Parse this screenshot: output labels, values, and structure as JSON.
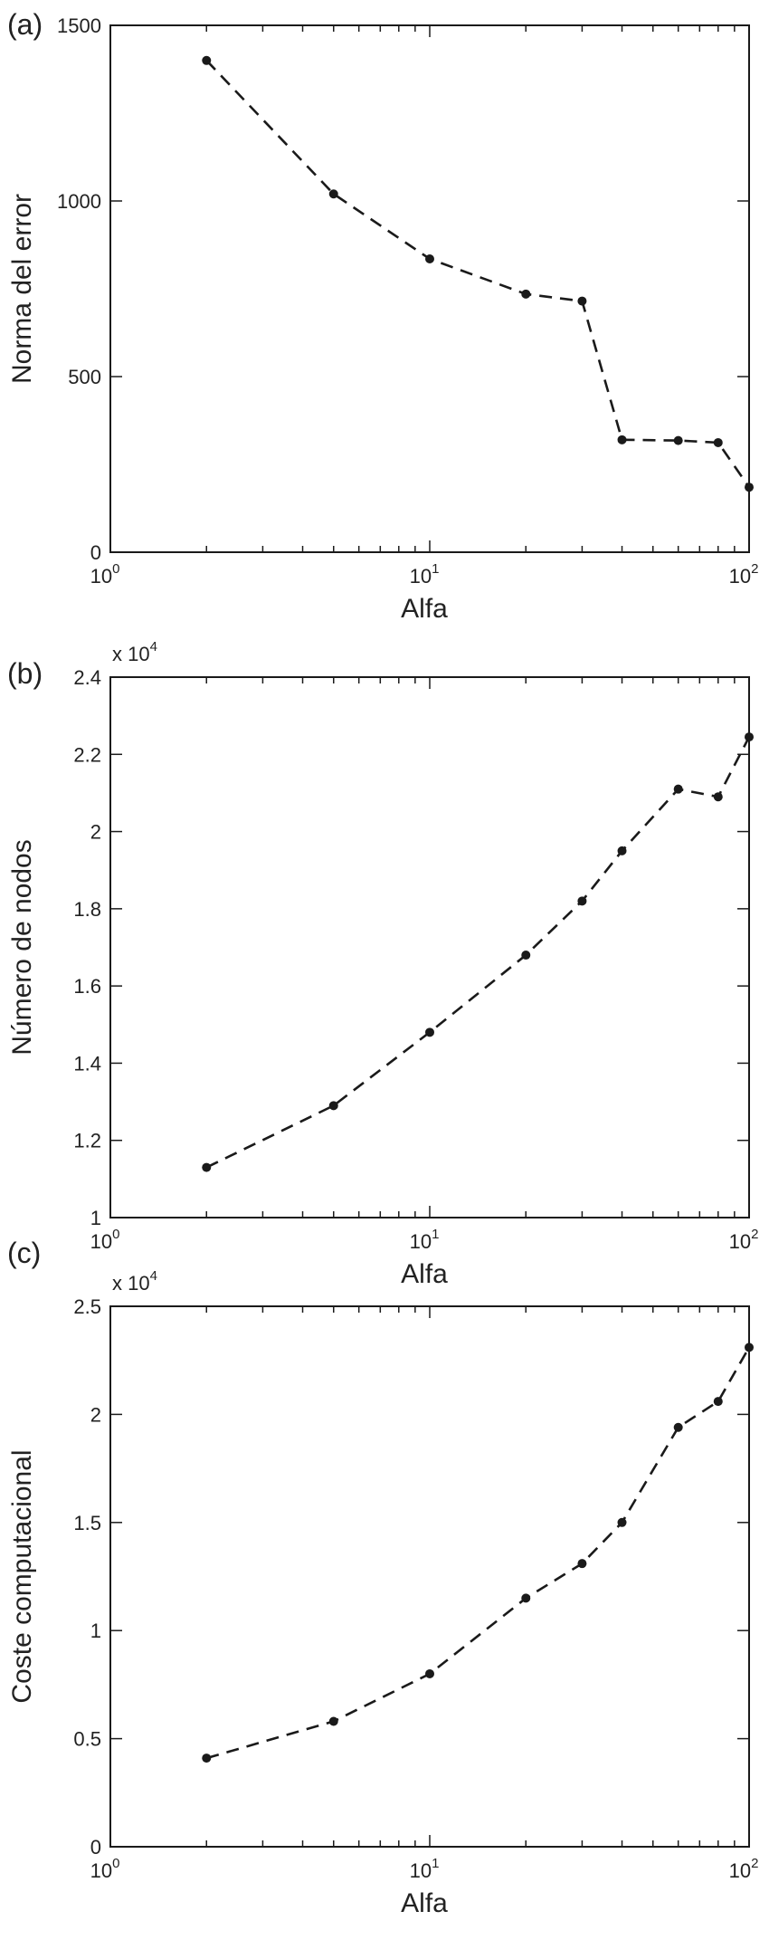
{
  "chart_data": [
    {
      "type": "line",
      "panel_label": "(a)",
      "xscale": "log",
      "xlabel": "Alfa",
      "ylabel": "Norma del error",
      "xlim": [
        1,
        100
      ],
      "ylim": [
        0,
        1500
      ],
      "x_ticks": [
        {
          "value": 1,
          "label": "10",
          "exp": "0"
        },
        {
          "value": 10,
          "label": "10",
          "exp": "1"
        },
        {
          "value": 100,
          "label": "10",
          "exp": "2"
        }
      ],
      "y_ticks": [
        {
          "value": 0,
          "label": "0"
        },
        {
          "value": 500,
          "label": "500"
        },
        {
          "value": 1000,
          "label": "1000"
        },
        {
          "value": 1500,
          "label": "1500"
        }
      ],
      "multiplier": "",
      "multiplier_exp": "",
      "grid": false,
      "series": [
        {
          "x": [
            2,
            5,
            10,
            20,
            30,
            40,
            60,
            80,
            100
          ],
          "values": [
            1400,
            1020,
            835,
            735,
            715,
            320,
            318,
            312,
            185
          ],
          "style": "dashed-with-dots"
        }
      ]
    },
    {
      "type": "line",
      "panel_label": "(b)",
      "xscale": "log",
      "xlabel": "Alfa",
      "ylabel": "Número de nodos",
      "xlim": [
        1,
        100
      ],
      "ylim": [
        1,
        2.4
      ],
      "x_ticks": [
        {
          "value": 1,
          "label": "10",
          "exp": "0"
        },
        {
          "value": 10,
          "label": "10",
          "exp": "1"
        },
        {
          "value": 100,
          "label": "10",
          "exp": "2"
        }
      ],
      "y_ticks": [
        {
          "value": 1,
          "label": "1"
        },
        {
          "value": 1.2,
          "label": "1.2"
        },
        {
          "value": 1.4,
          "label": "1.4"
        },
        {
          "value": 1.6,
          "label": "1.6"
        },
        {
          "value": 1.8,
          "label": "1.8"
        },
        {
          "value": 2,
          "label": "2"
        },
        {
          "value": 2.2,
          "label": "2.2"
        },
        {
          "value": 2.4,
          "label": "2.4"
        }
      ],
      "multiplier": "x 10",
      "multiplier_exp": "4",
      "grid": false,
      "series": [
        {
          "x": [
            2,
            5,
            10,
            20,
            30,
            40,
            60,
            80,
            100
          ],
          "values": [
            1.13,
            1.29,
            1.48,
            1.68,
            1.82,
            1.95,
            2.11,
            2.09,
            2.245
          ],
          "style": "dashed-with-dots"
        }
      ]
    },
    {
      "type": "line",
      "panel_label": "(c)",
      "xscale": "log",
      "xlabel": "Alfa",
      "ylabel": "Coste computacional",
      "xlim": [
        1,
        100
      ],
      "ylim": [
        0,
        2.5
      ],
      "x_ticks": [
        {
          "value": 1,
          "label": "10",
          "exp": "0"
        },
        {
          "value": 10,
          "label": "10",
          "exp": "1"
        },
        {
          "value": 100,
          "label": "10",
          "exp": "2"
        }
      ],
      "y_ticks": [
        {
          "value": 0,
          "label": "0"
        },
        {
          "value": 0.5,
          "label": "0.5"
        },
        {
          "value": 1,
          "label": "1"
        },
        {
          "value": 1.5,
          "label": "1.5"
        },
        {
          "value": 2,
          "label": "2"
        },
        {
          "value": 2.5,
          "label": "2.5"
        }
      ],
      "multiplier": "x 10",
      "multiplier_exp": "4",
      "grid": false,
      "series": [
        {
          "x": [
            2,
            5,
            10,
            20,
            30,
            40,
            60,
            80,
            100
          ],
          "values": [
            0.41,
            0.58,
            0.8,
            1.15,
            1.31,
            1.5,
            1.94,
            2.06,
            2.31
          ],
          "style": "dashed-with-dots"
        }
      ]
    }
  ],
  "colors": {
    "line": "#1a1a1a",
    "background": "#ffffff"
  }
}
